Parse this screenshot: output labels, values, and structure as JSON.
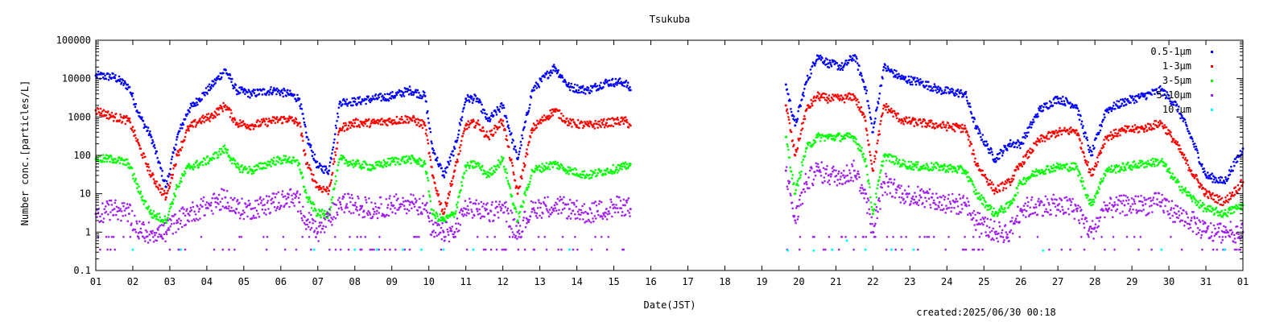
{
  "chart_data": {
    "type": "scatter",
    "title": "Tsukuba",
    "xlabel": "Date(JST)",
    "ylabel": "Number conc.[particles/L]",
    "footer": "created:2025/06/30 00:18",
    "x_unit": "day",
    "xlim": [
      1,
      32
    ],
    "x_ticks": [
      "01",
      "02",
      "03",
      "04",
      "05",
      "06",
      "07",
      "08",
      "09",
      "10",
      "11",
      "12",
      "13",
      "14",
      "15",
      "16",
      "17",
      "18",
      "19",
      "20",
      "21",
      "22",
      "23",
      "24",
      "25",
      "26",
      "27",
      "28",
      "29",
      "30",
      "31",
      "01"
    ],
    "y_scale": "log",
    "ylim": [
      0.1,
      100000
    ],
    "y_ticks": [
      "0.1",
      "1",
      "10",
      "100",
      "1000",
      "10000",
      "100000"
    ],
    "grid": false,
    "legend_position": "top-right",
    "gap_days": [
      15.45,
      19.65
    ],
    "series": [
      {
        "name": "0.5-1μm",
        "color": "#0000ff",
        "points": [
          [
            1.0,
            12000
          ],
          [
            1.5,
            11000
          ],
          [
            1.9,
            6000
          ],
          [
            2.2,
            1000
          ],
          [
            2.5,
            300
          ],
          [
            2.9,
            15
          ],
          [
            3.2,
            300
          ],
          [
            3.5,
            1500
          ],
          [
            3.8,
            3000
          ],
          [
            4.1,
            6000
          ],
          [
            4.5,
            17000
          ],
          [
            4.8,
            5000
          ],
          [
            5.2,
            4000
          ],
          [
            5.8,
            5000
          ],
          [
            6.2,
            4000
          ],
          [
            6.5,
            3000
          ],
          [
            6.7,
            300
          ],
          [
            7.0,
            50
          ],
          [
            7.3,
            40
          ],
          [
            7.6,
            2500
          ],
          [
            8.0,
            2500
          ],
          [
            8.5,
            3000
          ],
          [
            9.0,
            3500
          ],
          [
            9.5,
            5000
          ],
          [
            9.9,
            3500
          ],
          [
            10.1,
            150
          ],
          [
            10.4,
            30
          ],
          [
            10.7,
            150
          ],
          [
            11.0,
            3000
          ],
          [
            11.3,
            3000
          ],
          [
            11.6,
            800
          ],
          [
            12.0,
            2000
          ],
          [
            12.4,
            80
          ],
          [
            12.8,
            5000
          ],
          [
            13.4,
            20000
          ],
          [
            13.8,
            6000
          ],
          [
            14.3,
            5000
          ],
          [
            14.8,
            8000
          ],
          [
            15.3,
            8000
          ],
          [
            15.45,
            5000
          ],
          [
            19.65,
            7000
          ],
          [
            19.9,
            600
          ],
          [
            20.2,
            8000
          ],
          [
            20.5,
            40000
          ],
          [
            20.8,
            25000
          ],
          [
            21.2,
            20000
          ],
          [
            21.5,
            40000
          ],
          [
            21.8,
            6000
          ],
          [
            22.0,
            400
          ],
          [
            22.3,
            20000
          ],
          [
            22.8,
            10000
          ],
          [
            23.3,
            8000
          ],
          [
            23.8,
            5000
          ],
          [
            24.5,
            4000
          ],
          [
            24.8,
            500
          ],
          [
            25.3,
            80
          ],
          [
            25.7,
            200
          ],
          [
            26.0,
            200
          ],
          [
            26.5,
            1500
          ],
          [
            27.0,
            3000
          ],
          [
            27.5,
            2000
          ],
          [
            27.9,
            100
          ],
          [
            28.3,
            1500
          ],
          [
            28.8,
            2500
          ],
          [
            29.3,
            3500
          ],
          [
            29.8,
            5000
          ],
          [
            30.2,
            2000
          ],
          [
            30.6,
            300
          ],
          [
            31.0,
            30
          ],
          [
            31.5,
            20
          ],
          [
            32.0,
            150
          ]
        ]
      },
      {
        "name": "1-3μm",
        "color": "#ff0000",
        "points": [
          [
            1.0,
            1500
          ],
          [
            1.5,
            1000
          ],
          [
            1.9,
            800
          ],
          [
            2.2,
            150
          ],
          [
            2.5,
            30
          ],
          [
            2.9,
            8
          ],
          [
            3.2,
            100
          ],
          [
            3.5,
            500
          ],
          [
            3.8,
            800
          ],
          [
            4.1,
            1000
          ],
          [
            4.5,
            2000
          ],
          [
            4.8,
            700
          ],
          [
            5.2,
            600
          ],
          [
            5.8,
            800
          ],
          [
            6.2,
            900
          ],
          [
            6.5,
            700
          ],
          [
            6.7,
            60
          ],
          [
            7.0,
            15
          ],
          [
            7.3,
            12
          ],
          [
            7.6,
            500
          ],
          [
            8.0,
            700
          ],
          [
            8.5,
            700
          ],
          [
            9.0,
            800
          ],
          [
            9.5,
            900
          ],
          [
            9.9,
            600
          ],
          [
            10.1,
            30
          ],
          [
            10.4,
            3
          ],
          [
            10.7,
            40
          ],
          [
            11.0,
            600
          ],
          [
            11.3,
            700
          ],
          [
            11.6,
            300
          ],
          [
            12.0,
            800
          ],
          [
            12.4,
            10
          ],
          [
            12.8,
            500
          ],
          [
            13.4,
            1500
          ],
          [
            13.8,
            700
          ],
          [
            14.3,
            600
          ],
          [
            14.8,
            700
          ],
          [
            15.3,
            800
          ],
          [
            15.45,
            600
          ],
          [
            19.65,
            2000
          ],
          [
            19.9,
            100
          ],
          [
            20.2,
            1500
          ],
          [
            20.5,
            3500
          ],
          [
            20.8,
            3000
          ],
          [
            21.2,
            3000
          ],
          [
            21.5,
            3500
          ],
          [
            21.8,
            800
          ],
          [
            22.0,
            40
          ],
          [
            22.3,
            2000
          ],
          [
            22.8,
            800
          ],
          [
            23.3,
            700
          ],
          [
            23.8,
            600
          ],
          [
            24.5,
            500
          ],
          [
            24.8,
            60
          ],
          [
            25.3,
            12
          ],
          [
            25.7,
            20
          ],
          [
            26.0,
            60
          ],
          [
            26.5,
            250
          ],
          [
            27.0,
            400
          ],
          [
            27.5,
            450
          ],
          [
            27.9,
            30
          ],
          [
            28.3,
            300
          ],
          [
            28.8,
            450
          ],
          [
            29.3,
            500
          ],
          [
            29.8,
            700
          ],
          [
            30.2,
            200
          ],
          [
            30.6,
            40
          ],
          [
            31.0,
            10
          ],
          [
            31.5,
            6
          ],
          [
            32.0,
            20
          ]
        ]
      },
      {
        "name": "3-5μm",
        "color": "#00ff00",
        "points": [
          [
            1.0,
            80
          ],
          [
            1.5,
            80
          ],
          [
            1.9,
            60
          ],
          [
            2.2,
            10
          ],
          [
            2.5,
            3
          ],
          [
            2.9,
            2
          ],
          [
            3.2,
            15
          ],
          [
            3.5,
            50
          ],
          [
            3.8,
            60
          ],
          [
            4.1,
            80
          ],
          [
            4.5,
            150
          ],
          [
            4.8,
            50
          ],
          [
            5.2,
            40
          ],
          [
            5.8,
            70
          ],
          [
            6.2,
            80
          ],
          [
            6.5,
            60
          ],
          [
            6.7,
            8
          ],
          [
            7.0,
            3
          ],
          [
            7.3,
            3
          ],
          [
            7.6,
            80
          ],
          [
            8.0,
            60
          ],
          [
            8.5,
            50
          ],
          [
            9.0,
            70
          ],
          [
            9.5,
            80
          ],
          [
            9.9,
            60
          ],
          [
            10.1,
            3
          ],
          [
            10.4,
            2
          ],
          [
            10.7,
            3
          ],
          [
            11.0,
            50
          ],
          [
            11.3,
            60
          ],
          [
            11.6,
            30
          ],
          [
            12.0,
            80
          ],
          [
            12.4,
            2
          ],
          [
            12.8,
            40
          ],
          [
            13.4,
            60
          ],
          [
            13.8,
            40
          ],
          [
            14.3,
            30
          ],
          [
            14.8,
            40
          ],
          [
            15.3,
            50
          ],
          [
            15.45,
            60
          ],
          [
            19.65,
            300
          ],
          [
            19.9,
            10
          ],
          [
            20.2,
            150
          ],
          [
            20.5,
            300
          ],
          [
            20.8,
            300
          ],
          [
            21.2,
            300
          ],
          [
            21.5,
            300
          ],
          [
            21.8,
            80
          ],
          [
            22.0,
            3
          ],
          [
            22.3,
            100
          ],
          [
            22.8,
            60
          ],
          [
            23.3,
            50
          ],
          [
            23.8,
            50
          ],
          [
            24.5,
            40
          ],
          [
            24.8,
            10
          ],
          [
            25.3,
            3
          ],
          [
            25.7,
            5
          ],
          [
            26.0,
            20
          ],
          [
            26.5,
            40
          ],
          [
            27.0,
            50
          ],
          [
            27.5,
            50
          ],
          [
            27.9,
            5
          ],
          [
            28.3,
            40
          ],
          [
            28.8,
            50
          ],
          [
            29.3,
            60
          ],
          [
            29.8,
            70
          ],
          [
            30.2,
            20
          ],
          [
            30.6,
            8
          ],
          [
            31.0,
            4
          ],
          [
            31.5,
            3
          ],
          [
            32.0,
            5
          ]
        ]
      },
      {
        "name": "5-10μm",
        "color": "#a020f0",
        "points": [
          [
            1.0,
            3
          ],
          [
            1.5,
            4
          ],
          [
            1.9,
            3
          ],
          [
            2.2,
            1
          ],
          [
            2.5,
            1
          ],
          [
            2.9,
            1
          ],
          [
            3.2,
            2
          ],
          [
            3.5,
            3
          ],
          [
            3.8,
            4
          ],
          [
            4.1,
            5
          ],
          [
            4.5,
            8
          ],
          [
            4.8,
            4
          ],
          [
            5.2,
            4
          ],
          [
            5.8,
            6
          ],
          [
            6.2,
            8
          ],
          [
            6.5,
            6
          ],
          [
            6.7,
            2
          ],
          [
            7.0,
            1
          ],
          [
            7.3,
            2
          ],
          [
            7.6,
            6
          ],
          [
            8.0,
            5
          ],
          [
            8.5,
            4
          ],
          [
            9.0,
            5
          ],
          [
            9.5,
            6
          ],
          [
            9.9,
            5
          ],
          [
            10.1,
            1
          ],
          [
            10.4,
            1
          ],
          [
            10.7,
            1
          ],
          [
            11.0,
            4
          ],
          [
            11.3,
            4
          ],
          [
            11.6,
            3
          ],
          [
            12.0,
            5
          ],
          [
            12.4,
            1
          ],
          [
            12.8,
            4
          ],
          [
            13.4,
            5
          ],
          [
            13.8,
            4
          ],
          [
            14.3,
            3
          ],
          [
            14.8,
            4
          ],
          [
            15.3,
            5
          ],
          [
            15.45,
            4
          ],
          [
            19.65,
            40
          ],
          [
            19.9,
            2
          ],
          [
            20.2,
            20
          ],
          [
            20.5,
            40
          ],
          [
            20.8,
            30
          ],
          [
            21.2,
            30
          ],
          [
            21.5,
            40
          ],
          [
            21.8,
            10
          ],
          [
            22.0,
            1
          ],
          [
            22.3,
            20
          ],
          [
            22.8,
            10
          ],
          [
            23.3,
            8
          ],
          [
            23.8,
            6
          ],
          [
            24.5,
            5
          ],
          [
            24.8,
            2
          ],
          [
            25.3,
            1
          ],
          [
            25.7,
            1
          ],
          [
            26.0,
            4
          ],
          [
            26.5,
            5
          ],
          [
            27.0,
            5
          ],
          [
            27.5,
            4
          ],
          [
            27.9,
            1
          ],
          [
            28.3,
            4
          ],
          [
            28.8,
            5
          ],
          [
            29.3,
            5
          ],
          [
            29.8,
            6
          ],
          [
            30.2,
            3
          ],
          [
            30.6,
            2
          ],
          [
            31.0,
            1
          ],
          [
            31.5,
            1
          ],
          [
            32.0,
            1
          ]
        ]
      },
      {
        "name": "10-μm",
        "color": "#00ffff",
        "points": [
          [
            2.0,
            0.35
          ],
          [
            3.3,
            0.35
          ],
          [
            6.9,
            0.35
          ],
          [
            8.0,
            0.35
          ],
          [
            8.6,
            0.35
          ],
          [
            9.3,
            0.35
          ],
          [
            9.8,
            0.35
          ],
          [
            10.4,
            0.35
          ],
          [
            11.2,
            0.35
          ],
          [
            13.8,
            0.35
          ],
          [
            19.7,
            0.33
          ],
          [
            20.4,
            0.33
          ],
          [
            20.9,
            0.35
          ],
          [
            21.3,
            0.6
          ],
          [
            21.8,
            0.35
          ],
          [
            22.5,
            0.35
          ],
          [
            23.1,
            0.35
          ],
          [
            26.6,
            0.33
          ],
          [
            29.8,
            0.35
          ],
          [
            31.5,
            0.35
          ]
        ]
      }
    ]
  }
}
